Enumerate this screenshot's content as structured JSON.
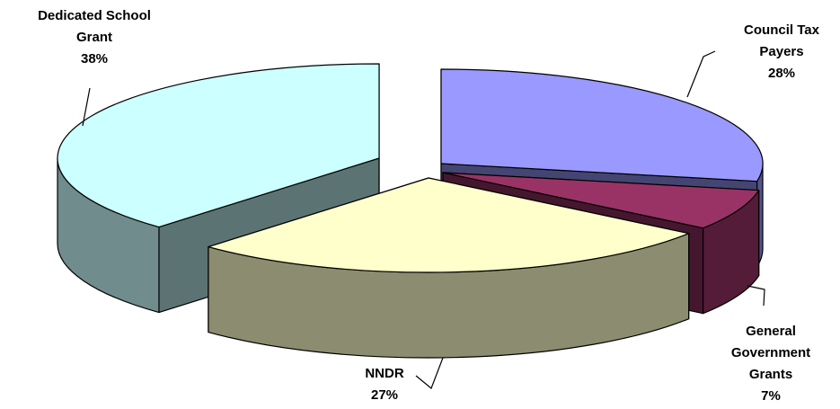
{
  "chart_data": {
    "type": "pie",
    "style": "3d-exploded",
    "title": "",
    "slices": [
      {
        "name": "Council Tax Payers",
        "value": 28,
        "value_label": "28%",
        "label_lines": [
          "Council Tax",
          "Payers",
          "28%"
        ],
        "color": "#9999FF"
      },
      {
        "name": "General Government Grants",
        "value": 7,
        "value_label": "7%",
        "label_lines": [
          "General",
          "Government",
          "Grants",
          "7%"
        ],
        "color": "#993366"
      },
      {
        "name": "NNDR",
        "value": 27,
        "value_label": "27%",
        "label_lines": [
          "NNDR",
          "27%"
        ],
        "color": "#FFFFCC"
      },
      {
        "name": "Dedicated School Grant",
        "value": 38,
        "value_label": "38%",
        "label_lines": [
          "Dedicated School",
          "Grant",
          "38%"
        ],
        "color": "#CCFFFF"
      }
    ],
    "legend": "none"
  }
}
